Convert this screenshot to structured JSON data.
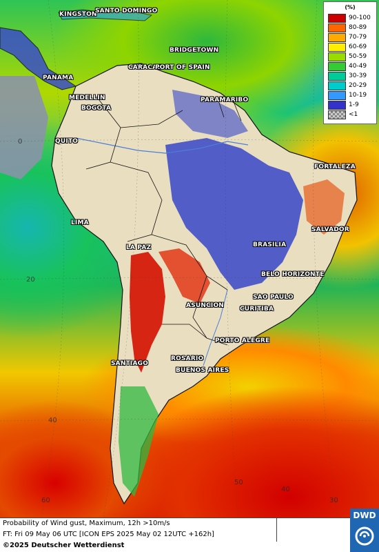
{
  "cities": [
    {
      "name": "KINGSTON"
    },
    {
      "name": "SANTO DOMINGO"
    },
    {
      "name": "BRIDGETOWN"
    },
    {
      "name": "CARACAS"
    },
    {
      "name": "PORT OF SPAIN"
    },
    {
      "name": "PANAMA"
    },
    {
      "name": "MEDELLIN"
    },
    {
      "name": "BOGOTA"
    },
    {
      "name": "PARAMARIBO"
    },
    {
      "name": "QUITO"
    },
    {
      "name": "FORTALEZA"
    },
    {
      "name": "LIMA"
    },
    {
      "name": "SALVADOR"
    },
    {
      "name": "LA PAZ"
    },
    {
      "name": "BRASILIA"
    },
    {
      "name": "BELO HORIZONTE"
    },
    {
      "name": "SAO PAULO"
    },
    {
      "name": "ASUNCION"
    },
    {
      "name": "CURITIBA"
    },
    {
      "name": "PORTO ALEGRE"
    },
    {
      "name": "SANTIAGO"
    },
    {
      "name": "ROSARIO"
    },
    {
      "name": "BUENOS AIRES"
    }
  ],
  "grid_labels": [
    "0",
    "20",
    "40",
    "60",
    "50",
    "40",
    "30"
  ],
  "legend": {
    "unit": "(%)",
    "entries": [
      {
        "label": "90-100",
        "color": "#cc0000"
      },
      {
        "label": "80-89",
        "color": "#ff6600"
      },
      {
        "label": "70-79",
        "color": "#ffaa00"
      },
      {
        "label": "60-69",
        "color": "#ffee00"
      },
      {
        "label": "50-59",
        "color": "#99dd00"
      },
      {
        "label": "40-49",
        "color": "#33cc33"
      },
      {
        "label": "30-39",
        "color": "#00cc99"
      },
      {
        "label": "20-29",
        "color": "#00cccc"
      },
      {
        "label": "10-19",
        "color": "#3399ff"
      },
      {
        "label": "1-9",
        "color": "#3333cc"
      },
      {
        "label": "<1",
        "color": "checker"
      }
    ]
  },
  "footer": {
    "line1": "Probability of Wind gust, Maximum, 12h >10m/s",
    "line2": "FT: Fri 09 May 06 UTC [ICON EPS 2025 May 02 12UTC +162h]",
    "line3": "©2025 Deutscher Wetterdienst"
  },
  "logo": {
    "text": "DWD"
  }
}
